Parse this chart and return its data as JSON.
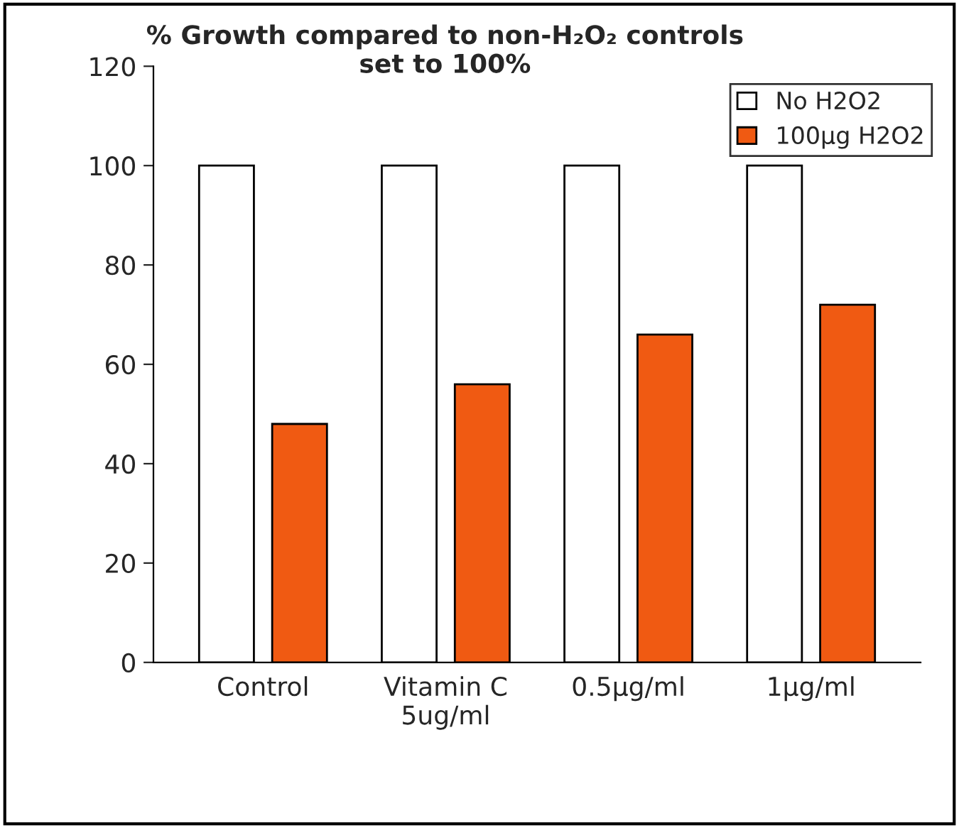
{
  "chart_data": {
    "type": "bar",
    "title": "% Growth compared to non-H₂O₂ controls\nset to 100%",
    "categories": [
      "Control",
      "Vitamin C\n5ug/ml",
      "0.5µg/ml",
      "1µg/ml"
    ],
    "series": [
      {
        "name": "No H2O2",
        "color": "#ffffff",
        "values": [
          100,
          100,
          100,
          100
        ]
      },
      {
        "name": "100µg H2O2",
        "color": "#f05a12",
        "values": [
          48,
          56,
          66,
          72
        ]
      }
    ],
    "ylim": [
      0,
      120
    ],
    "yticks": [
      0,
      20,
      40,
      60,
      80,
      100,
      120
    ],
    "grid": false,
    "legend": "top right"
  }
}
